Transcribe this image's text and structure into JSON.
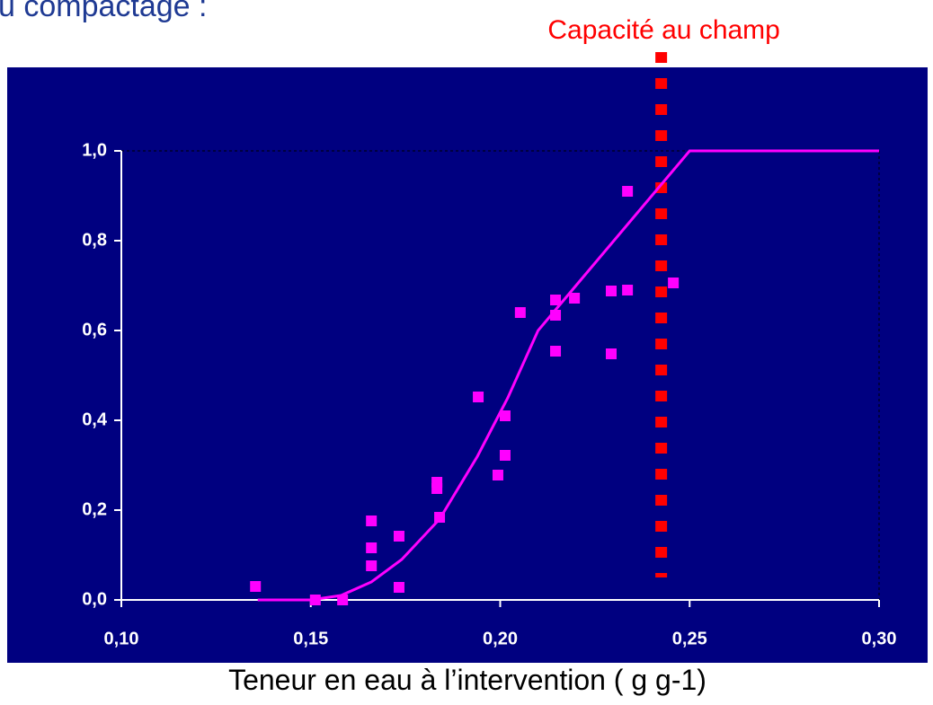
{
  "chart_data": {
    "type": "scatter",
    "title": "u compactage :",
    "xlabel": "Teneur en eau à l’intervention ( g g-1)",
    "xlim": [
      0.1,
      0.3
    ],
    "ylim": [
      0,
      1.0
    ],
    "xticks": [
      {
        "value": 0.1,
        "label": "0,10"
      },
      {
        "value": 0.15,
        "label": "0,15"
      },
      {
        "value": 0.2,
        "label": "0,20"
      },
      {
        "value": 0.25,
        "label": "0,25"
      },
      {
        "value": 0.3,
        "label": "0,30"
      }
    ],
    "yticks": [
      {
        "value": 0,
        "label": "0,0"
      },
      {
        "value": 0.2,
        "label": "0,2"
      },
      {
        "value": 0.4,
        "label": "0,4"
      },
      {
        "value": 0.6,
        "label": "0,6"
      },
      {
        "value": 0.8,
        "label": "0,8"
      },
      {
        "value": 1.0,
        "label": "1,0"
      }
    ],
    "background": "#000080",
    "points": {
      "color": "#ff00ff",
      "x": [
        0.1354,
        0.1512,
        0.1584,
        0.166,
        0.166,
        0.166,
        0.1733,
        0.1733,
        0.1833,
        0.1833,
        0.184,
        0.1942,
        0.1994,
        0.2013,
        0.2013,
        0.2053,
        0.2146,
        0.2146,
        0.2146,
        0.2196,
        0.2293,
        0.2293,
        0.2336,
        0.2336,
        0.2457
      ],
      "y": [
        0.03,
        0.0,
        0.0,
        0.176,
        0.116,
        0.076,
        0.142,
        0.028,
        0.262,
        0.248,
        0.184,
        0.452,
        0.278,
        0.41,
        0.322,
        0.64,
        0.668,
        0.634,
        0.554,
        0.672,
        0.688,
        0.548,
        0.69,
        0.91,
        0.706
      ]
    },
    "curve": {
      "color": "#ff00ff",
      "x": [
        0.136,
        0.15,
        0.158,
        0.166,
        0.174,
        0.184,
        0.194,
        0.202,
        0.21,
        0.216,
        0.24,
        0.25,
        0.3
      ],
      "y": [
        0,
        0,
        0.01,
        0.04,
        0.09,
        0.18,
        0.32,
        0.45,
        0.6,
        0.66,
        0.9,
        1.0,
        1.0
      ]
    },
    "vline": {
      "label": "Capacité au champ",
      "x": 0.2425,
      "y_range": [
        0.05,
        1.22
      ],
      "color": "#ff0000"
    }
  }
}
